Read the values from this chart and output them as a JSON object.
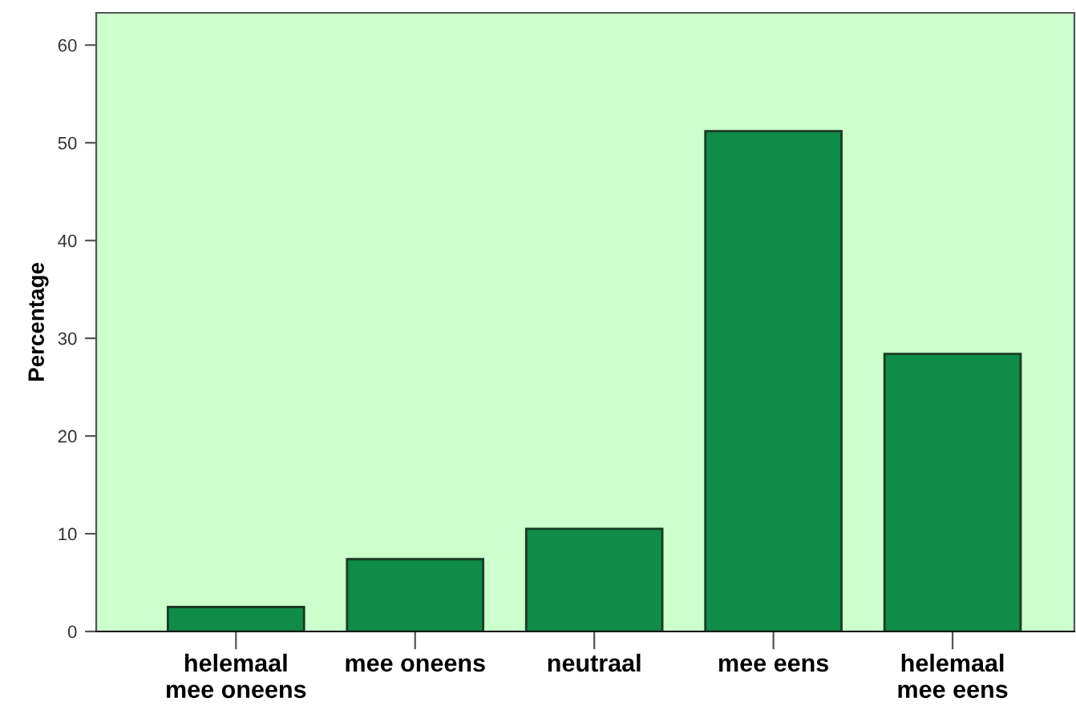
{
  "chart_data": {
    "type": "bar",
    "ylabel": "Percentage",
    "categories": [
      "helemaal\nmee oneens",
      "mee oneens",
      "neutraal",
      "mee eens",
      "helemaal\nmee eens"
    ],
    "values": [
      2.5,
      7.4,
      10.5,
      51.2,
      28.4
    ],
    "color": "#0f8c48",
    "ylim": [
      0,
      63.3
    ],
    "yticks": [
      0,
      10,
      20,
      30,
      40,
      50,
      60
    ],
    "grid": false,
    "legend": false
  }
}
